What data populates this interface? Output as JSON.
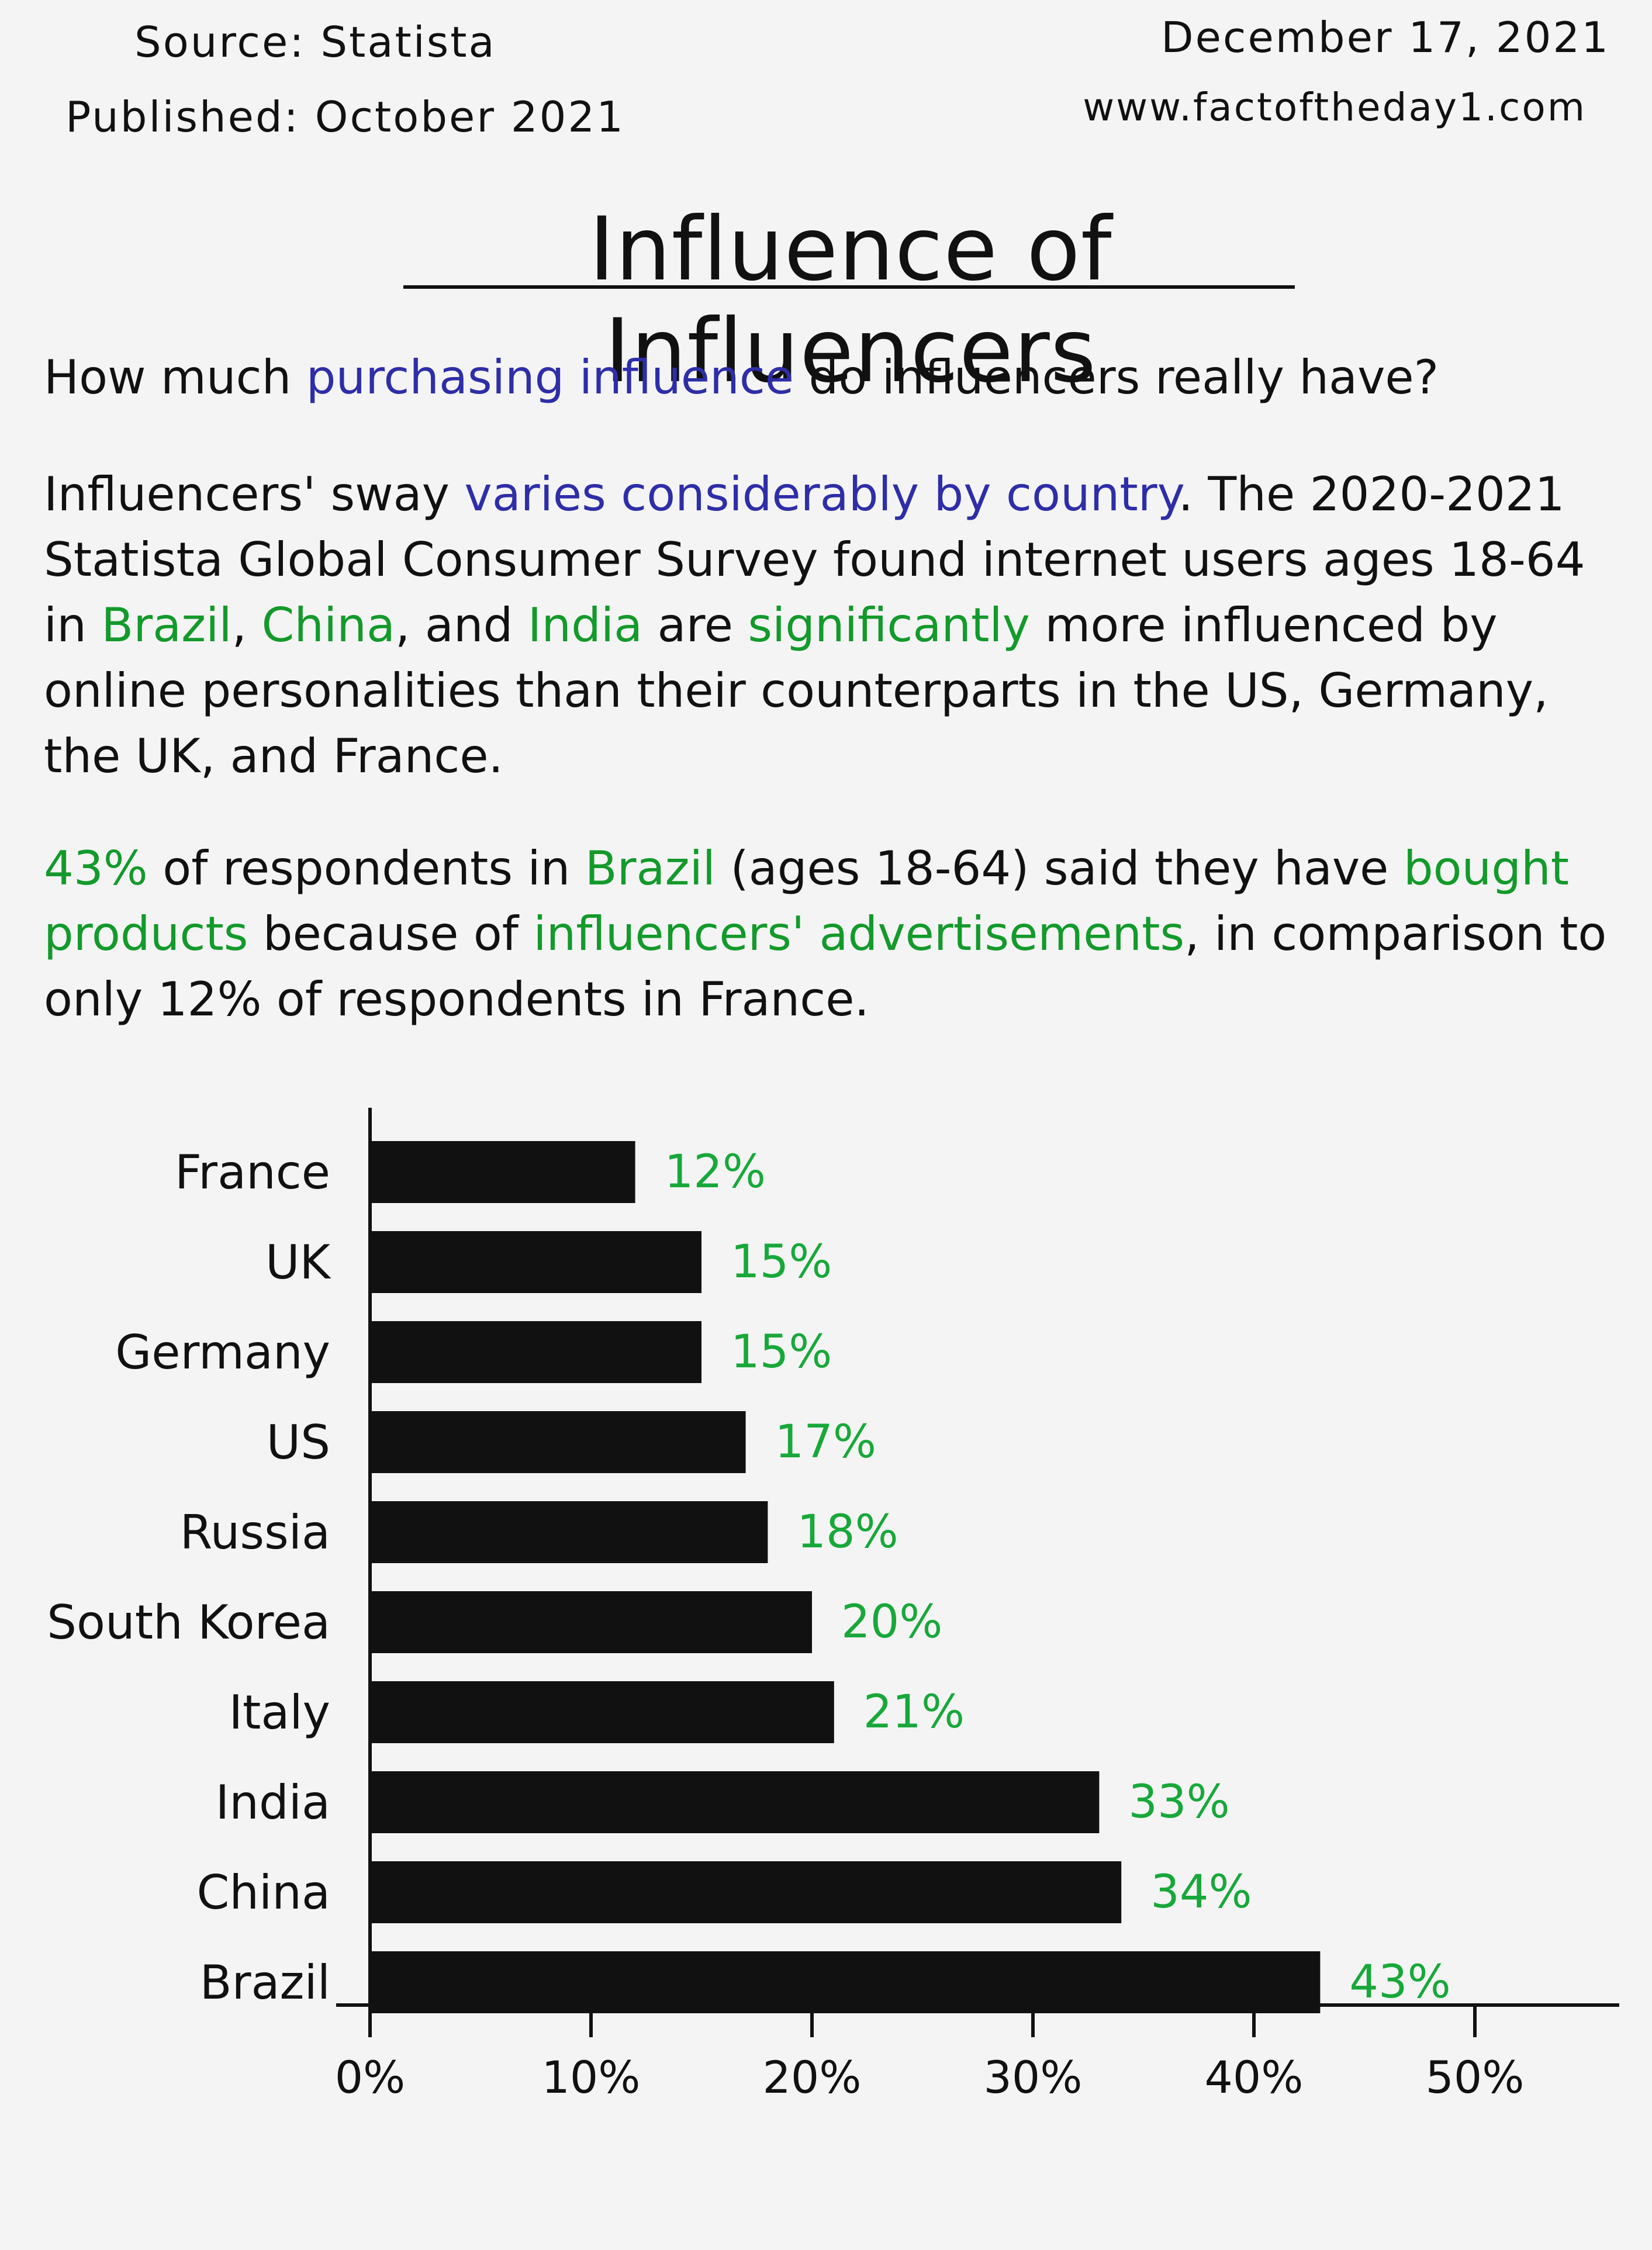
{
  "header": {
    "source": "Source: Statista",
    "published": "Published: October 2021",
    "date": "December 17, 2021",
    "website": "www.factoftheday1.com"
  },
  "title": "Influence of Influencers",
  "question": {
    "t1": "How much ",
    "h1": "purchasing influence",
    "t2": " do influencers really have?"
  },
  "para1": {
    "t1": "Influencers' sway ",
    "h1": "varies considerably by country",
    "t2": ". The 2020-2021 Statista Global Consumer Survey found internet users ages 18-64 in ",
    "h2": "Brazil",
    "t3": ", ",
    "h3": "China",
    "t4": ", and ",
    "h4": "India",
    "t5": " are ",
    "h5": "significantly",
    "t6": " more influenced by online personalities than their counterparts in the US, Germany, the UK, and France."
  },
  "para2": {
    "h1": "43%",
    "t1": " of respondents in ",
    "h2": "Brazil",
    "t2": " (ages 18-64) said they have ",
    "h3": "bought products",
    "t3": " because of ",
    "h4": "influencers' advertisements",
    "t4": ", in comparison to only 12% of respondents in France."
  },
  "colors": {
    "bar": "#111111",
    "value_label": "#18a83a",
    "blue_highlight": "#2e2ea8",
    "green_highlight": "#139a2b"
  },
  "chart_data": {
    "type": "bar",
    "orientation": "horizontal",
    "categories": [
      "France",
      "UK",
      "Germany",
      "US",
      "Russia",
      "South Korea",
      "Italy",
      "India",
      "China",
      "Brazil"
    ],
    "values": [
      12,
      15,
      15,
      17,
      18,
      20,
      21,
      33,
      34,
      43
    ],
    "value_labels": [
      "12%",
      "15%",
      "15%",
      "17%",
      "18%",
      "20%",
      "21%",
      "33%",
      "34%",
      "43%"
    ],
    "xlim": [
      0,
      50
    ],
    "x_ticks": [
      0,
      10,
      20,
      30,
      40,
      50
    ],
    "x_tick_labels": [
      "0%",
      "10%",
      "20%",
      "30%",
      "40%",
      "50%"
    ],
    "grid": false,
    "legend": "none"
  }
}
